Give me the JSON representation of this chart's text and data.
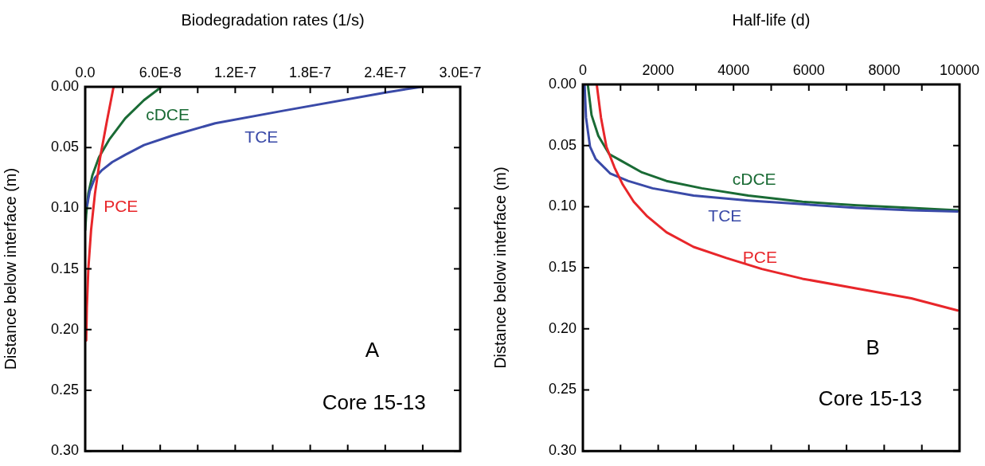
{
  "chart_data": [
    {
      "type": "line",
      "xlabel": "Biodegradation rates (1/s)",
      "ylabel": "Distance below interface (m)",
      "xlim": [
        0,
        3e-07
      ],
      "ylim": [
        0.3,
        0
      ],
      "xticks": [
        {
          "value": 0,
          "label": "0.0"
        },
        {
          "value": 3e-08,
          "label": null
        },
        {
          "value": 6e-08,
          "label": "6.0E-8"
        },
        {
          "value": 9e-08,
          "label": null
        },
        {
          "value": 1.2e-07,
          "label": "1.2E-7"
        },
        {
          "value": 1.5e-07,
          "label": null
        },
        {
          "value": 1.8e-07,
          "label": "1.8E-7"
        },
        {
          "value": 2.1e-07,
          "label": null
        },
        {
          "value": 2.4e-07,
          "label": "2.4E-7"
        },
        {
          "value": 2.7e-07,
          "label": null
        },
        {
          "value": 3e-07,
          "label": "3.0E-7"
        }
      ],
      "yticks": [
        {
          "value": 0,
          "label": "0.00"
        },
        {
          "value": 0.05,
          "label": "0.05"
        },
        {
          "value": 0.1,
          "label": "0.10"
        },
        {
          "value": 0.15,
          "label": "0.15"
        },
        {
          "value": 0.2,
          "label": "0.20"
        },
        {
          "value": 0.25,
          "label": "0.25"
        },
        {
          "value": 0.3,
          "label": "0.30"
        }
      ],
      "grid": false,
      "legend": false,
      "marker": "none",
      "line_style": "solid",
      "annotations": [
        "A",
        "Core 15-13"
      ],
      "series": [
        {
          "name": "PCE",
          "color": "#e8262a",
          "x": [
            2.27e-08,
            1.74e-08,
            1.2e-08,
            7.8e-09,
            4.7e-09,
            2.5e-09,
            1.3e-09,
            8e-10
          ],
          "values": [
            0,
            0.028,
            0.058,
            0.088,
            0.118,
            0.15,
            0.182,
            0.209
          ]
        },
        {
          "name": "TCE",
          "color": "#3a4aa8",
          "x": [
            2.69e-07,
            2.4e-07,
            1.59e-07,
            1.04e-07,
            7e-08,
            4.7e-08,
            3.2e-08,
            2.16e-08,
            1.3e-08,
            7.8e-09,
            3.6e-09,
            1.5e-09
          ],
          "values": [
            0,
            0.0047,
            0.0196,
            0.03,
            0.04,
            0.048,
            0.056,
            0.062,
            0.069,
            0.075,
            0.086,
            0.098
          ]
        },
        {
          "name": "cDCE",
          "color": "#1a6b35",
          "x": [
            6.1e-08,
            4.7e-08,
            3.2e-08,
            1.95e-08,
            1.1e-08,
            5.7e-09,
            2.5e-09,
            8e-10,
            0
          ],
          "values": [
            0,
            0.011,
            0.026,
            0.043,
            0.058,
            0.073,
            0.088,
            0.105,
            0.118
          ]
        }
      ]
    },
    {
      "type": "line",
      "xlabel": "Half-life (d)",
      "ylabel": "Distance below interface (m)",
      "xlim": [
        0,
        10000
      ],
      "ylim": [
        0.3,
        0
      ],
      "xticks": [
        0,
        {
          "value": 1000,
          "label": null
        },
        2000,
        {
          "value": 3000,
          "label": null
        },
        4000,
        {
          "value": 5000,
          "label": null
        },
        6000,
        {
          "value": 7000,
          "label": null
        },
        8000,
        {
          "value": 9000,
          "label": null
        },
        10000
      ],
      "yticks": [
        {
          "value": 0,
          "label": "0.00"
        },
        {
          "value": 0.05,
          "label": "0.05"
        },
        {
          "value": 0.1,
          "label": "0.10"
        },
        {
          "value": 0.15,
          "label": "0.15"
        },
        {
          "value": 0.2,
          "label": "0.20"
        },
        {
          "value": 0.25,
          "label": "0.25"
        },
        {
          "value": 0.3,
          "label": "0.30"
        }
      ],
      "grid": false,
      "legend": false,
      "marker": "none",
      "line_style": "solid",
      "annotations": [
        "B",
        "Core 15-13"
      ],
      "series": [
        {
          "name": "PCE",
          "color": "#e8262a",
          "x": [
            372,
            480,
            625,
            840,
            1060,
            1350,
            1710,
            2220,
            2940,
            3810,
            4750,
            5830,
            7280,
            8720,
            9950
          ],
          "values": [
            0.001,
            0.027,
            0.051,
            0.068,
            0.082,
            0.096,
            0.108,
            0.121,
            0.133,
            0.142,
            0.151,
            0.159,
            0.167,
            0.175,
            0.185
          ]
        },
        {
          "name": "TCE",
          "color": "#3a4aa8",
          "x": [
            47,
            83,
            190,
            340,
            730,
            1200,
            1850,
            2940,
            4390,
            5830,
            7280,
            8720,
            9950
          ],
          "values": [
            0.001,
            0.027,
            0.051,
            0.061,
            0.073,
            0.079,
            0.085,
            0.091,
            0.095,
            0.098,
            0.101,
            0.103,
            0.104
          ]
        },
        {
          "name": "cDCE",
          "color": "#1a6b35",
          "x": [
            134,
            230,
            410,
            700,
            990,
            1570,
            2220,
            3160,
            4390,
            5830,
            7280,
            8720,
            9950
          ],
          "values": [
            0.001,
            0.025,
            0.042,
            0.057,
            0.062,
            0.072,
            0.079,
            0.085,
            0.091,
            0.096,
            0.099,
            0.101,
            0.103
          ]
        }
      ]
    }
  ]
}
